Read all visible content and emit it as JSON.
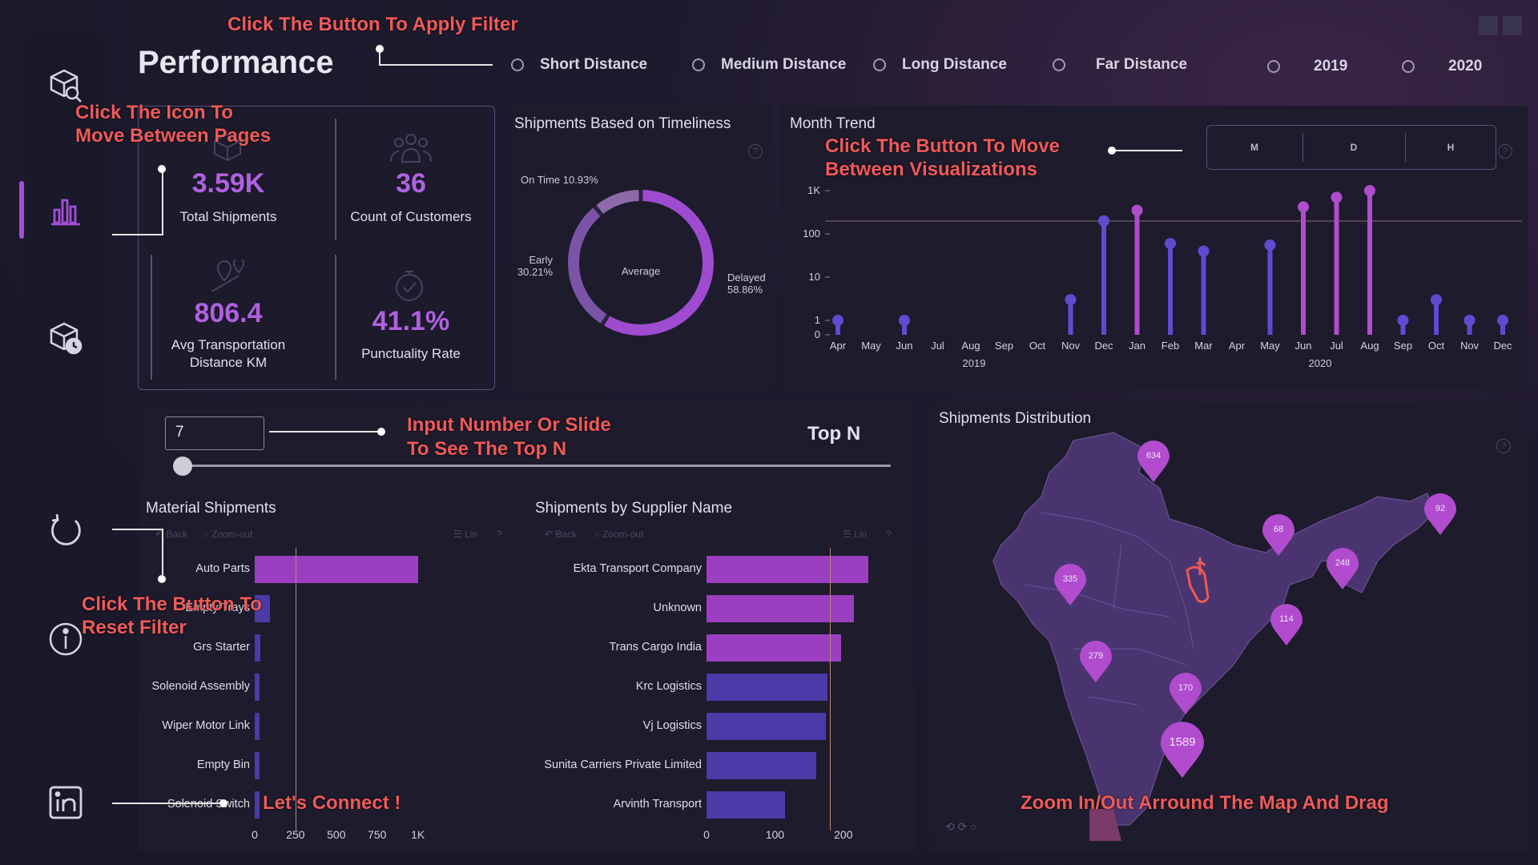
{
  "page": {
    "title": "Performance"
  },
  "annotations": {
    "apply_filter": "Click The Button To Apply Filter",
    "move_pages_1": "Click The Icon To",
    "move_pages_2": "Move Between Pages",
    "move_vis_1": "Click The Button To Move",
    "move_vis_2": "Between Visualizations",
    "topn_1": "Input Number Or Slide",
    "topn_2": "To See The Top N",
    "reset_1": "Click The Button To",
    "reset_2": "Reset Filter",
    "connect": "Let's Connect !",
    "map": "Zoom In/Out Arround The Map And Drag"
  },
  "filters": {
    "distance": [
      "Short Distance",
      "Medium Distance",
      "Long Distance",
      "Far Distance"
    ],
    "years": [
      "2019",
      "2020"
    ]
  },
  "kpis": {
    "total_shipments": {
      "value": "3.59K",
      "label": "Total Shipments"
    },
    "customers": {
      "value": "36",
      "label": "Count of Customers"
    },
    "avg_distance": {
      "value": "806.4",
      "label_1": "Avg Transportation",
      "label_2": "Distance KM"
    },
    "punctuality": {
      "value": "41.1%",
      "label": "Punctuality Rate"
    }
  },
  "timeliness": {
    "title": "Shipments Based on Timeliness",
    "center": "Average",
    "on_time": "On Time 10.93%",
    "early_1": "Early",
    "early_2": "30.21%",
    "delayed_1": "Delayed",
    "delayed_2": "58.86%",
    "help": "?"
  },
  "month_trend": {
    "title": "Month Trend",
    "buttons": [
      "M",
      "D",
      "H"
    ],
    "help": "?",
    "y_ticks": [
      "1K",
      "100",
      "10",
      "1",
      "0"
    ],
    "months": [
      "Apr",
      "May",
      "Jun",
      "Jul",
      "Aug",
      "Sep",
      "Oct",
      "Nov",
      "Dec",
      "Jan",
      "Feb",
      "Mar",
      "Apr",
      "May",
      "Jun",
      "Jul",
      "Aug",
      "Sep",
      "Oct",
      "Nov",
      "Dec"
    ],
    "year_labels": [
      "2019",
      "2020"
    ]
  },
  "chart_data": [
    {
      "type": "line",
      "title": "Month Trend",
      "scale": "log",
      "x": [
        "Apr 2019",
        "May 2019",
        "Jun 2019",
        "Jul 2019",
        "Aug 2019",
        "Sep 2019",
        "Oct 2019",
        "Nov 2019",
        "Dec 2019",
        "Jan 2020",
        "Feb 2020",
        "Mar 2020",
        "Apr 2020",
        "May 2020",
        "Jun 2020",
        "Jul 2020",
        "Aug 2020",
        "Sep 2020",
        "Oct 2020",
        "Nov 2020",
        "Dec 2020"
      ],
      "values": [
        1,
        null,
        1,
        null,
        null,
        null,
        null,
        3,
        200,
        350,
        60,
        40,
        null,
        55,
        420,
        700,
        1000,
        1,
        3,
        1,
        1
      ],
      "ylim": [
        0,
        1000
      ]
    },
    {
      "type": "pie",
      "title": "Shipments Based on Timeliness",
      "categories": [
        "On Time",
        "Early",
        "Delayed"
      ],
      "values": [
        10.93,
        30.21,
        58.86
      ]
    },
    {
      "type": "bar",
      "title": "Material Shipments",
      "categories": [
        "Auto Parts",
        "Empty Trays",
        "Grs Starter",
        "Solenoid Assembly",
        "Wiper Motor Link",
        "Empty Bin",
        "Solenoid Switch"
      ],
      "values": [
        1000,
        95,
        35,
        15,
        15,
        12,
        10
      ],
      "xticks": [
        "0",
        "250",
        "500",
        "750",
        "1K"
      ],
      "ref_line": 250,
      "xlim": [
        0,
        1100
      ]
    },
    {
      "type": "bar",
      "title": "Shipments by Supplier Name",
      "categories": [
        "Ekta Transport Company",
        "Unknown",
        "Trans Cargo India",
        "Krc Logistics",
        "Vj Logistics",
        "Sunita Carriers Private Limited",
        "Arvinth Transport"
      ],
      "values": [
        237,
        215,
        197,
        177,
        174,
        160,
        115
      ],
      "xticks": [
        "0",
        "100",
        "200"
      ],
      "ref_line": 180,
      "xlim": [
        0,
        240
      ]
    }
  ],
  "topn": {
    "input_value": "7",
    "label": "Top N",
    "slider_fraction": 0.0
  },
  "material": {
    "title": "Material Shipments",
    "back": "Back",
    "zoom": "Zoom-out",
    "lin": "Lin",
    "help": "?"
  },
  "supplier": {
    "title": "Shipments by Supplier Name",
    "back": "Back",
    "zoom": "Zoom-out",
    "lin": "Lin",
    "help": "?"
  },
  "map": {
    "title": "Shipments Distribution",
    "help": "?",
    "pins": [
      "634",
      "92",
      "68",
      "335",
      "248",
      "114",
      "279",
      "170",
      "1589"
    ]
  },
  "colors": {
    "accent": "#a24fd6",
    "bar_purple": "#9b3fc0",
    "bar_blue": "#4b3aa8",
    "annotation": "#f05a5a"
  }
}
